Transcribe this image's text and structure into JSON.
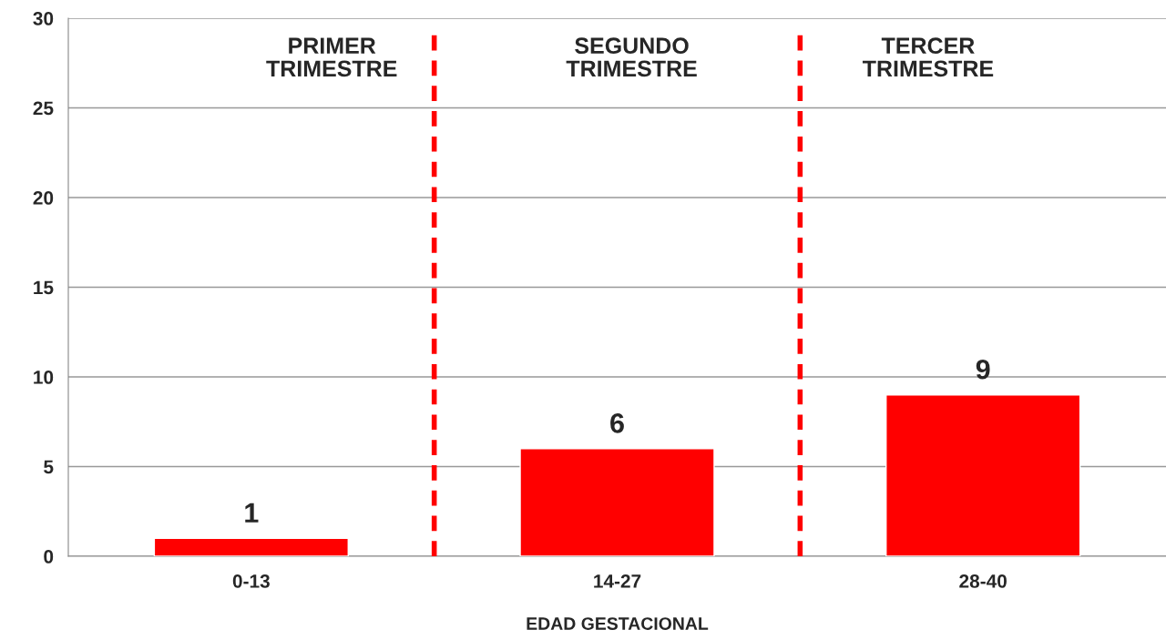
{
  "chart_data": {
    "type": "bar",
    "xlabel": "EDAD GESTACIONAL",
    "categories": [
      "0-13",
      "14-27",
      "28-40"
    ],
    "values": [
      1,
      6,
      9
    ],
    "color": "#ff0000",
    "data_labels": true,
    "ylim": [
      0,
      30
    ],
    "yticks": [
      0,
      5,
      10,
      15,
      20,
      25,
      30
    ],
    "grid": "y",
    "annotations": [
      "PRIMER\nTRIMESTRE",
      "SEGUNDO\nTRIMESTRE",
      "TERCER\nTRIMESTRE"
    ]
  }
}
